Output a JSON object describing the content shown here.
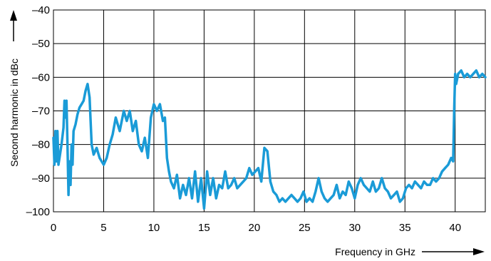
{
  "chart_data": {
    "type": "line",
    "title": "",
    "xlabel": "Frequency in GHz",
    "ylabel": "Second harmonic in dBc",
    "xlim": [
      0,
      43
    ],
    "ylim": [
      -100,
      -40
    ],
    "grid": true,
    "line_color": "#1a9bd7",
    "x_ticks": [
      0,
      5,
      10,
      15,
      20,
      25,
      30,
      35,
      40
    ],
    "x_tick_labels": [
      "0",
      "5",
      "10",
      "15",
      "20",
      "25",
      "30",
      "35",
      "40"
    ],
    "y_ticks": [
      -100,
      -90,
      -80,
      -70,
      -60,
      -50,
      -40
    ],
    "y_tick_labels": [
      "–100",
      "–90",
      "–80",
      "–70",
      "–60",
      "–50",
      "–40"
    ],
    "series": [
      {
        "x": [
          0.0,
          0.1,
          0.2,
          0.3,
          0.4,
          0.5,
          0.6,
          0.7,
          0.8,
          1.0,
          1.1,
          1.2,
          1.3,
          1.4,
          1.5,
          1.6,
          1.7,
          1.8,
          1.9,
          2.0,
          2.2,
          2.4,
          2.6,
          2.8,
          3.0,
          3.2,
          3.4,
          3.6,
          3.8,
          4.0,
          4.3,
          4.6,
          5.0,
          5.3,
          5.6,
          5.9,
          6.2,
          6.6,
          7.0,
          7.3,
          7.6,
          7.9,
          8.2,
          8.5,
          8.8,
          9.1,
          9.4,
          9.7,
          10.0,
          10.3,
          10.6,
          10.9,
          11.1,
          11.3,
          11.5,
          11.7,
          12.0,
          12.3,
          12.6,
          12.9,
          13.2,
          13.5,
          13.8,
          14.1,
          14.4,
          14.7,
          15.0,
          15.3,
          15.6,
          15.9,
          16.2,
          16.5,
          16.8,
          17.1,
          17.4,
          17.7,
          18.0,
          18.3,
          18.6,
          18.9,
          19.2,
          19.5,
          19.8,
          20.1,
          20.4,
          20.7,
          21.0,
          21.3,
          21.6,
          21.9,
          22.2,
          22.5,
          22.8,
          23.1,
          23.4,
          23.7,
          24.0,
          24.3,
          24.6,
          24.9,
          25.2,
          25.5,
          25.8,
          26.1,
          26.4,
          26.7,
          27.0,
          27.3,
          27.6,
          27.9,
          28.2,
          28.5,
          28.8,
          29.1,
          29.4,
          29.7,
          30.0,
          30.3,
          30.6,
          30.9,
          31.2,
          31.5,
          31.8,
          32.1,
          32.4,
          32.7,
          33.0,
          33.3,
          33.6,
          33.9,
          34.2,
          34.5,
          34.8,
          35.1,
          35.4,
          35.7,
          36.0,
          36.3,
          36.6,
          36.9,
          37.2,
          37.5,
          37.8,
          38.1,
          38.4,
          38.7,
          39.0,
          39.3,
          39.6,
          39.8,
          39.9,
          40.0,
          40.1,
          40.3,
          40.6,
          40.9,
          41.2,
          41.5,
          41.8,
          42.1,
          42.4,
          42.7,
          43.0
        ],
        "y": [
          -78,
          -86,
          -76,
          -85,
          -76,
          -86,
          -84,
          -82,
          -80,
          -75,
          -67,
          -72,
          -67,
          -80,
          -95,
          -85,
          -92,
          -80,
          -86,
          -76,
          -74,
          -71,
          -69,
          -68,
          -67,
          -64,
          -62,
          -66,
          -80,
          -83,
          -81,
          -84,
          -86,
          -84,
          -80,
          -77,
          -72,
          -76,
          -70,
          -73,
          -70,
          -76,
          -73,
          -80,
          -82,
          -78,
          -84,
          -72,
          -68,
          -70,
          -68,
          -73,
          -72,
          -84,
          -88,
          -91,
          -93,
          -89,
          -96,
          -92,
          -95,
          -90,
          -96,
          -88,
          -97,
          -90,
          -99,
          -88,
          -95,
          -90,
          -96,
          -92,
          -93,
          -88,
          -93,
          -92,
          -90,
          -93,
          -92,
          -91,
          -90,
          -87,
          -89,
          -88,
          -87,
          -91,
          -81,
          -82,
          -91,
          -94,
          -95,
          -97,
          -96,
          -97,
          -96,
          -95,
          -96,
          -97,
          -96,
          -94,
          -97,
          -96,
          -97,
          -94,
          -90,
          -94,
          -96,
          -97,
          -96,
          -95,
          -92,
          -96,
          -94,
          -95,
          -91,
          -93,
          -96,
          -92,
          -90,
          -92,
          -93,
          -94,
          -91,
          -94,
          -93,
          -90,
          -93,
          -94,
          -96,
          -95,
          -94,
          -97,
          -96,
          -93,
          -92,
          -93,
          -91,
          -92,
          -93,
          -91,
          -92,
          -92,
          -90,
          -91,
          -90,
          -88,
          -87,
          -86,
          -84,
          -85,
          -70,
          -59,
          -62,
          -59,
          -58,
          -60,
          -59,
          -60,
          -59,
          -58,
          -60,
          -59,
          -60
        ]
      }
    ]
  }
}
